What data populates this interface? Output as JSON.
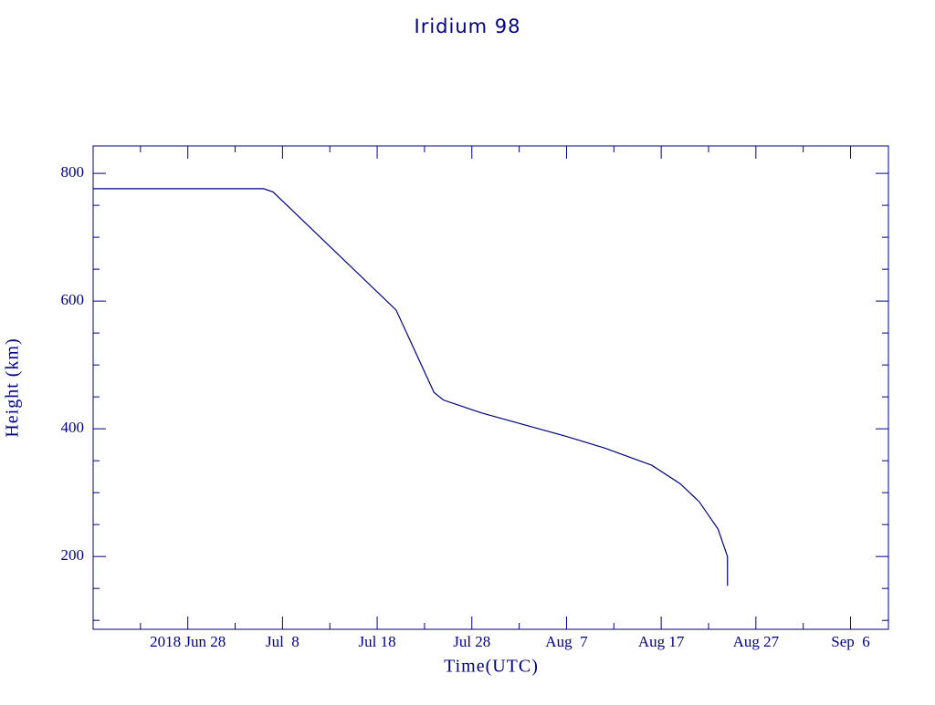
{
  "chart_data": {
    "type": "line",
    "title": "Iridium 98",
    "xlabel": "Time(UTC)",
    "ylabel": "Height (km)",
    "color": "#000080",
    "x": [
      "2018-06-18",
      "2018-07-06",
      "2018-07-07",
      "2018-07-20",
      "2018-07-24",
      "2018-07-25",
      "2018-07-29",
      "2018-08-07",
      "2018-08-11",
      "2018-08-16",
      "2018-08-19",
      "2018-08-21",
      "2018-08-23",
      "2018-08-24",
      "2018-08-24"
    ],
    "values": [
      776,
      776,
      771,
      586,
      457,
      445,
      425,
      388,
      370,
      343,
      314,
      286,
      243,
      200,
      154
    ],
    "xlim": [
      "2018-06-18",
      "2018-09-10"
    ],
    "xticks": [
      {
        "value": "2018-06-28",
        "label": "2018 Jun 28"
      },
      {
        "value": "2018-07-08",
        "label": "Jul  8"
      },
      {
        "value": "2018-07-18",
        "label": "Jul 18"
      },
      {
        "value": "2018-07-28",
        "label": "Jul 28"
      },
      {
        "value": "2018-08-07",
        "label": "Aug  7"
      },
      {
        "value": "2018-08-17",
        "label": "Aug 17"
      },
      {
        "value": "2018-08-27",
        "label": "Aug 27"
      },
      {
        "value": "2018-09-06",
        "label": "Sep  6"
      }
    ],
    "xminorticks": [
      "2018-06-23",
      "2018-07-03",
      "2018-07-13",
      "2018-07-23",
      "2018-08-02",
      "2018-08-12",
      "2018-08-22",
      "2018-09-01"
    ],
    "ylim": [
      86,
      843
    ],
    "yticks": [
      200,
      400,
      600,
      800
    ],
    "yminorticks": [
      100,
      150,
      250,
      300,
      350,
      450,
      500,
      550,
      650,
      700,
      750
    ]
  }
}
